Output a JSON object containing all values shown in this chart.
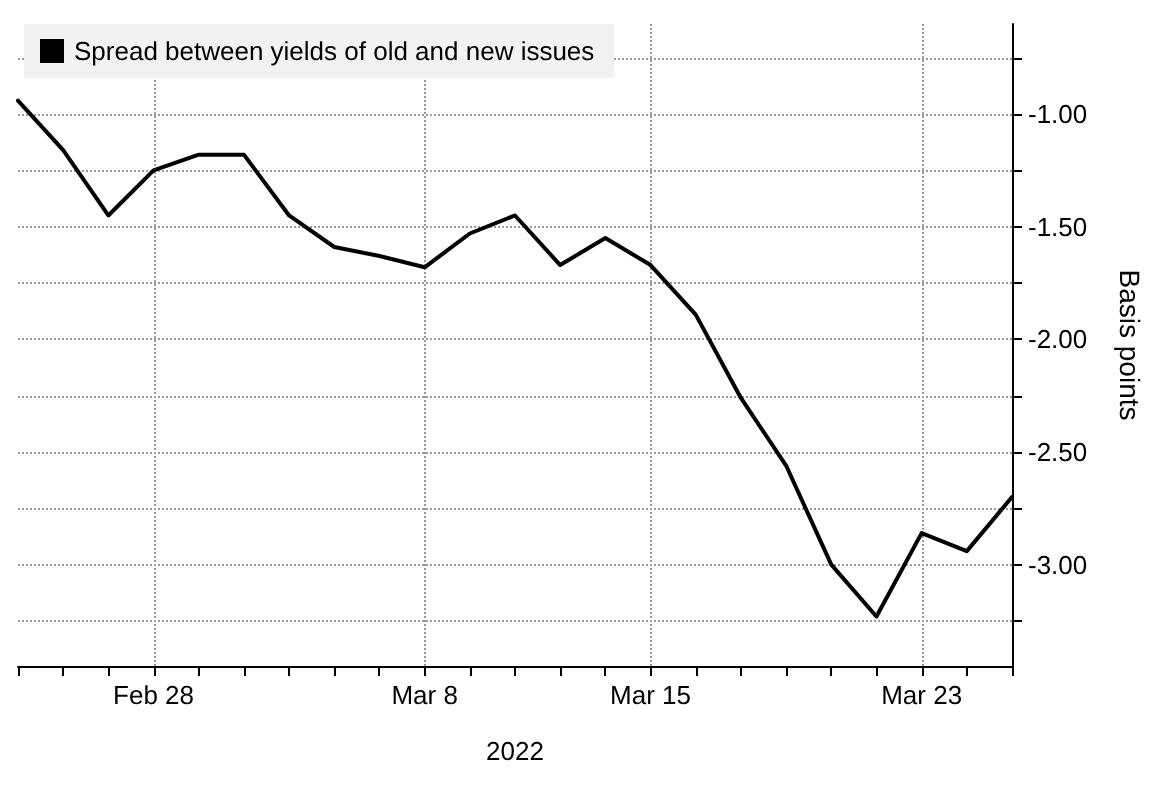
{
  "chart_data": {
    "type": "line",
    "ylabel": "Basis points",
    "xlabel": "2022",
    "categories": [
      null,
      null,
      null,
      "Feb 28",
      null,
      null,
      null,
      null,
      null,
      "Mar 8",
      null,
      null,
      null,
      null,
      "Mar 15",
      null,
      null,
      null,
      null,
      null,
      "Mar 23",
      null,
      null
    ],
    "series": [
      {
        "name": "Spread between yields of old and new issues",
        "color": "#000000",
        "values": [
          -0.94,
          -1.16,
          -1.45,
          -1.25,
          -1.18,
          -1.18,
          -1.45,
          -1.59,
          -1.63,
          -1.68,
          -1.53,
          -1.45,
          -1.67,
          -1.55,
          -1.67,
          -1.89,
          -2.26,
          -2.56,
          -3.0,
          -3.23,
          -2.86,
          -2.94,
          -2.7
        ]
      }
    ],
    "ylim": [
      -3.45,
      -0.6
    ],
    "yticks": [
      {
        "value": -3.25,
        "label": null
      },
      "-3.00",
      {
        "value": -2.75,
        "label": null
      },
      {
        "value": -2.5,
        "label": "-2.50"
      },
      {
        "value": -2.25,
        "label": null
      },
      {
        "value": -2,
        "label": "-2.00"
      },
      {
        "value": -1.75,
        "label": null
      },
      {
        "value": -1.5,
        "label": "-1.50"
      },
      {
        "value": -1.25,
        "label": null
      },
      {
        "value": -1,
        "label": "-1.00"
      },
      {
        "value": -0.75,
        "label": null
      }
    ],
    "grid": true,
    "legend": "top left",
    "marker": "none",
    "line_style": "solid"
  }
}
